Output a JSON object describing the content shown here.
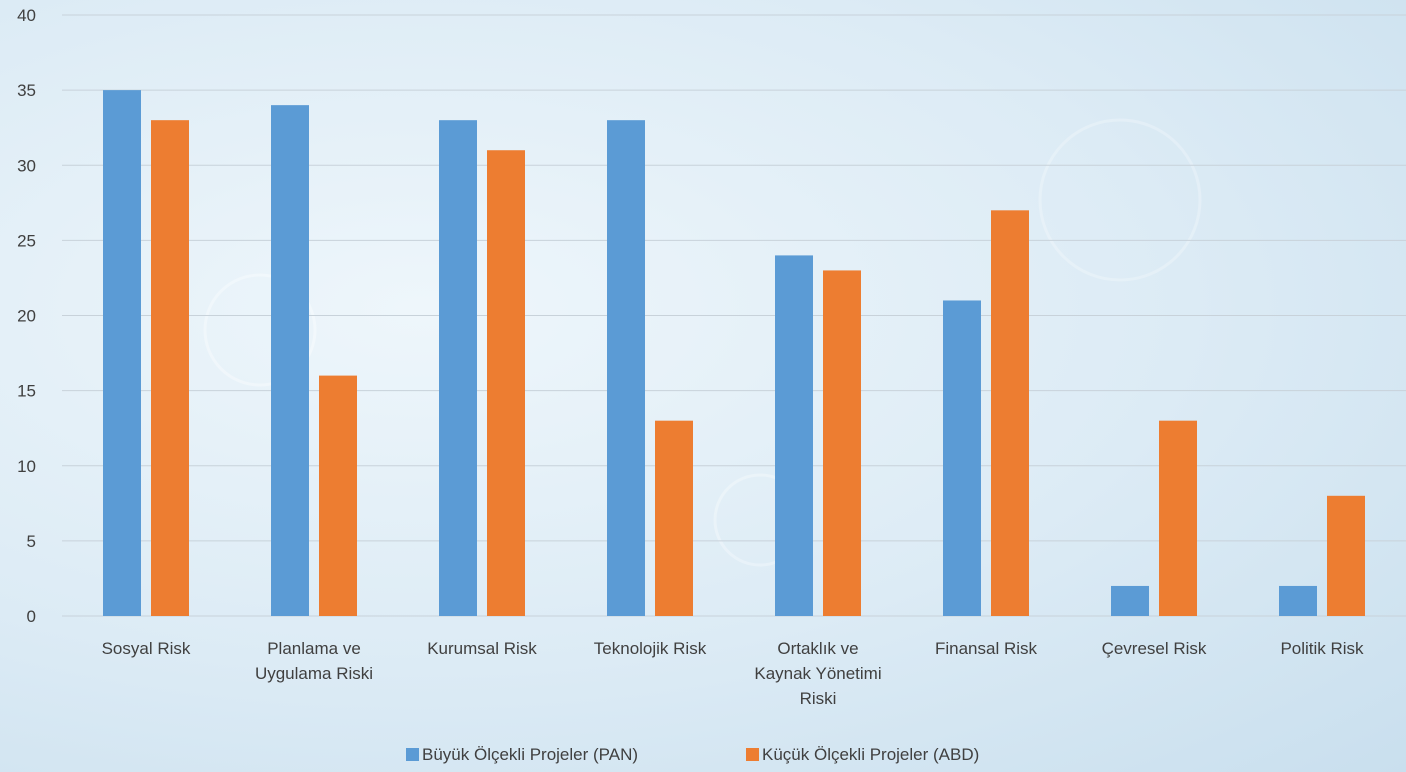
{
  "chart_data": {
    "type": "bar",
    "title": "",
    "xlabel": "",
    "ylabel": "",
    "ylim": [
      0,
      40
    ],
    "yticks": [
      0,
      5,
      10,
      15,
      20,
      25,
      30,
      35,
      40
    ],
    "grid": true,
    "legend_position": "bottom",
    "categories": [
      [
        "Sosyal Risk"
      ],
      [
        "Planlama ve",
        "Uygulama Riski"
      ],
      [
        "Kurumsal Risk"
      ],
      [
        "Teknolojik Risk"
      ],
      [
        "Ortaklık ve",
        "Kaynak Yönetimi",
        "Riski"
      ],
      [
        "Finansal Risk"
      ],
      [
        "Çevresel Risk"
      ],
      [
        "Politik Risk"
      ]
    ],
    "series": [
      {
        "name": "Büyük Ölçekli Projeler (PAN)",
        "color": "#5b9bd5",
        "values": [
          35,
          34,
          33,
          33,
          24,
          21,
          2,
          2
        ]
      },
      {
        "name": "Küçük Ölçekli Projeler (ABD)",
        "color": "#ed7d31",
        "values": [
          33,
          16,
          31,
          13,
          23,
          27,
          13,
          8
        ]
      }
    ]
  }
}
